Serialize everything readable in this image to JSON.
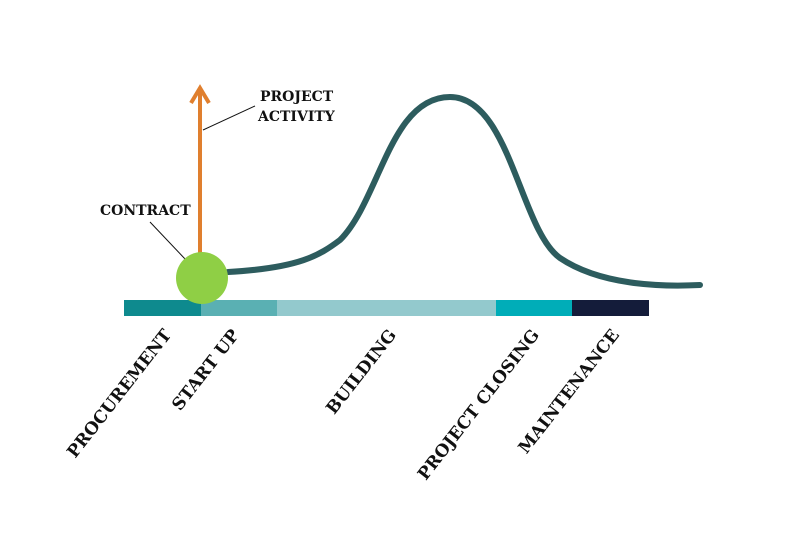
{
  "annotations": {
    "project_activity": [
      "PROJECT",
      "ACTIVITY"
    ],
    "contract": "CONTRACT"
  },
  "phases": [
    {
      "label": "PROCUREMENT",
      "color": "#0e8a8e"
    },
    {
      "label": "START UP",
      "color": "#5ab0b3"
    },
    {
      "label": "BUILDING",
      "color": "#93c9cd"
    },
    {
      "label": "PROJECT CLOSING",
      "color": "#00adb8"
    },
    {
      "label": "MAINTENANCE",
      "color": "#141c3a"
    }
  ]
}
